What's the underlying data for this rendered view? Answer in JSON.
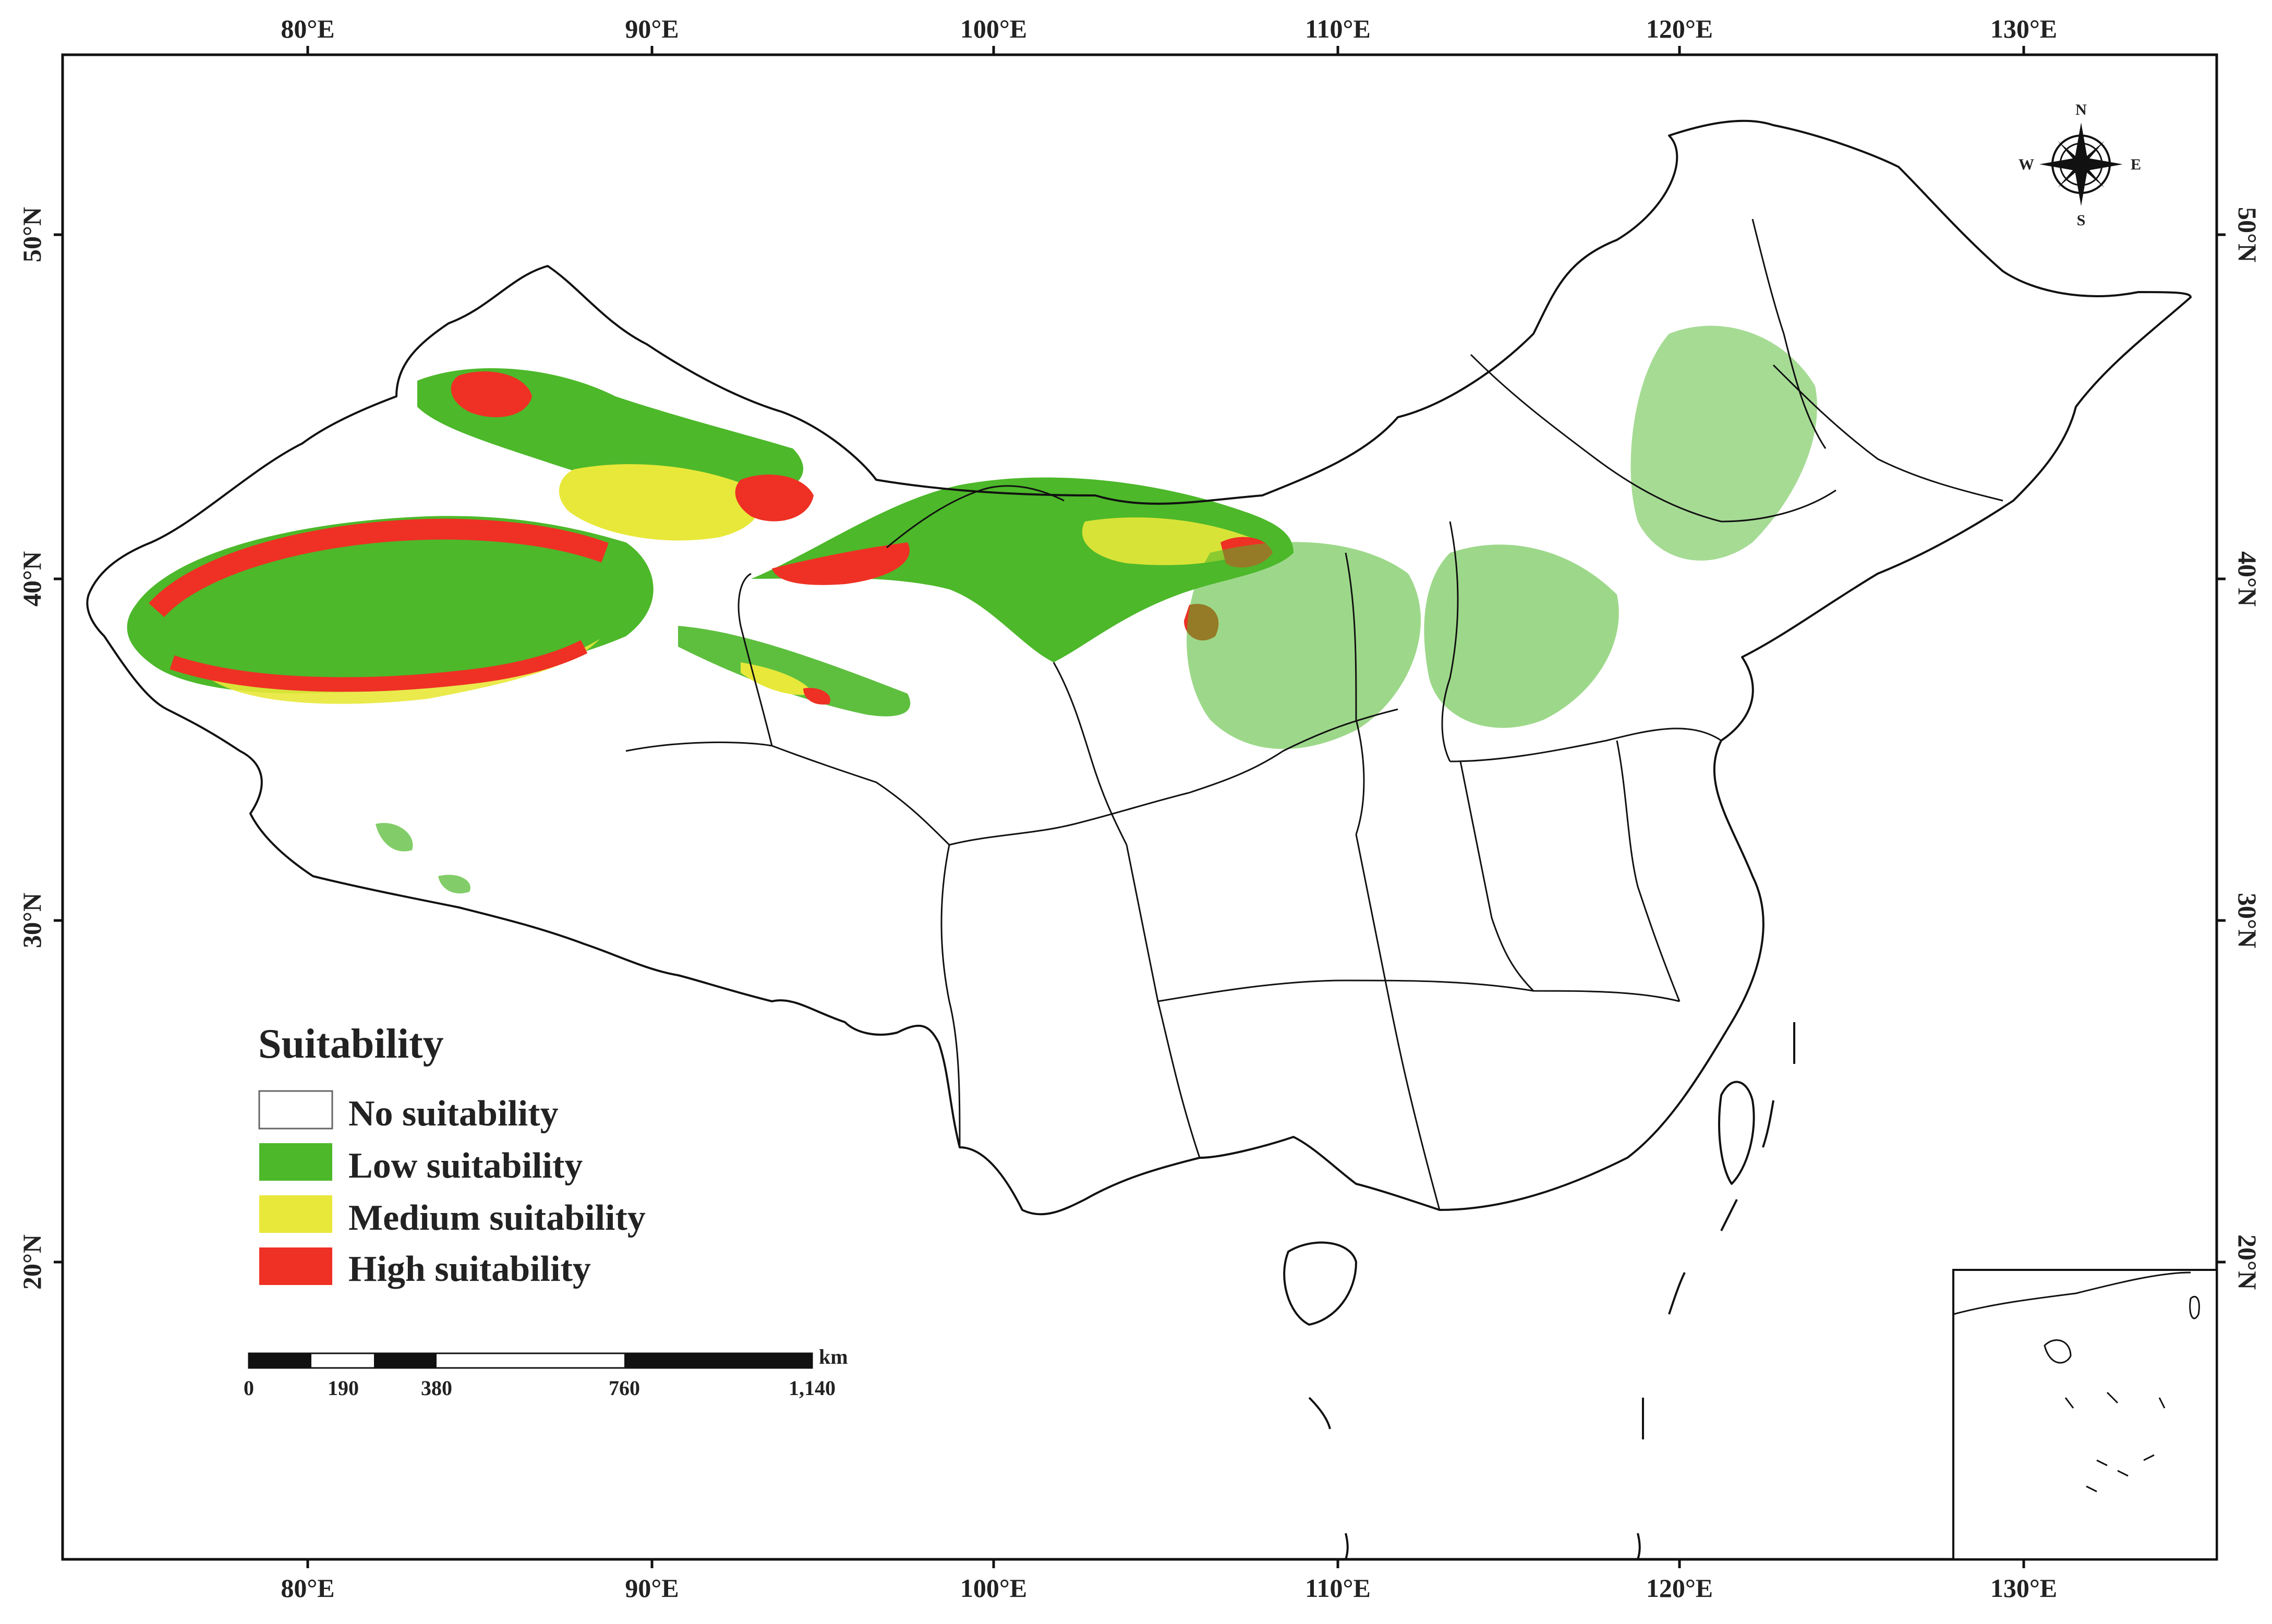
{
  "map": {
    "top_ticks": [
      "80°E",
      "90°E",
      "100°E",
      "110°E",
      "120°E",
      "130°E"
    ],
    "bottom_ticks": [
      "80°E",
      "90°E",
      "100°E",
      "110°E",
      "120°E",
      "130°E"
    ],
    "left_ticks": [
      "50°N",
      "40°N",
      "30°N",
      "20°N"
    ],
    "right_ticks": [
      "50°N",
      "40°N",
      "30°N",
      "20°N"
    ]
  },
  "legend": {
    "title": "Suitability",
    "items": [
      {
        "label": "No suitability",
        "color": "#ffffff"
      },
      {
        "label": "Low suitability",
        "color": "#4db82a"
      },
      {
        "label": "Medium suitability",
        "color": "#e8e83a"
      },
      {
        "label": "High suitability",
        "color": "#ee3124"
      }
    ]
  },
  "scale_bar": {
    "unit": "km",
    "labels": [
      "0",
      "190",
      "380",
      "760",
      "1,140"
    ]
  },
  "compass": {
    "n": "N",
    "s": "S",
    "e": "E",
    "w": "W"
  },
  "colors": {
    "low": "#4db82a",
    "medium": "#e8e83a",
    "high": "#ee3124",
    "border": "#111111"
  }
}
